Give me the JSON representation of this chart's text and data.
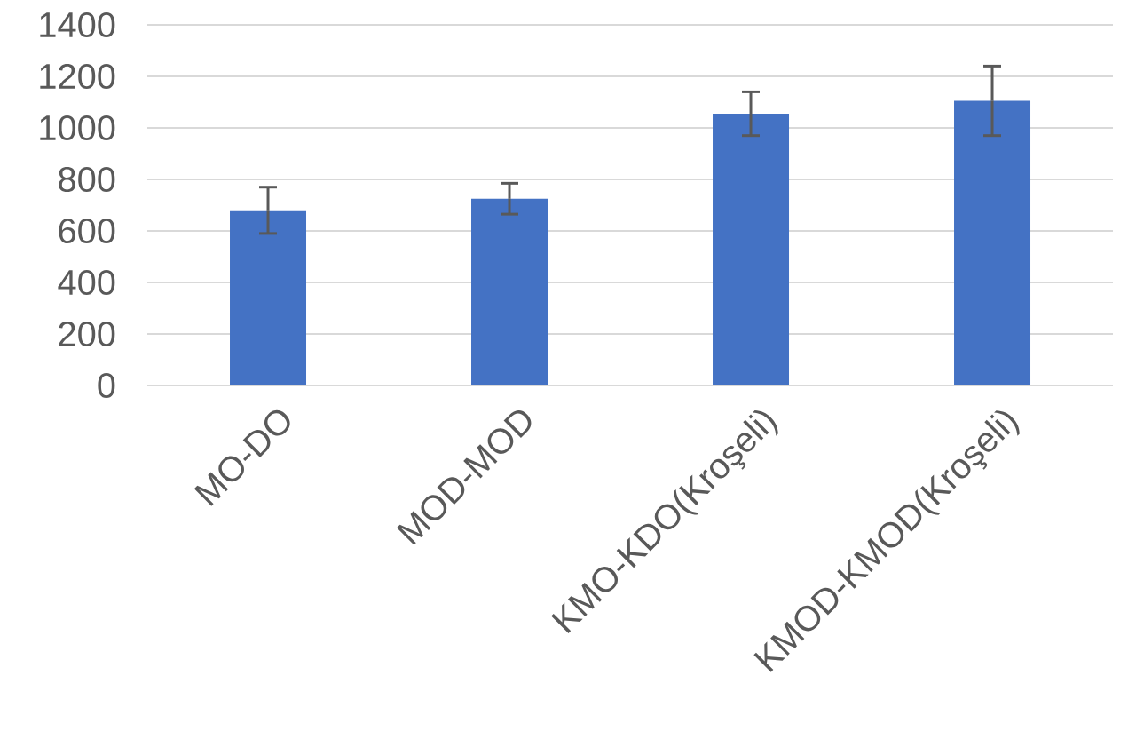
{
  "chart_data": {
    "type": "bar",
    "categories": [
      "MO-DO",
      "MOD-MOD",
      "KMO-KDO(Kroşeli)",
      "KMOD-KMOD(Kroşeli)"
    ],
    "values": [
      680,
      725,
      1055,
      1105
    ],
    "errors": [
      90,
      60,
      85,
      135
    ],
    "color": "#4472c4",
    "ylim": [
      0,
      1400
    ],
    "yticks": [
      0,
      200,
      400,
      600,
      800,
      1000,
      1200,
      1400
    ],
    "grid": "y"
  }
}
